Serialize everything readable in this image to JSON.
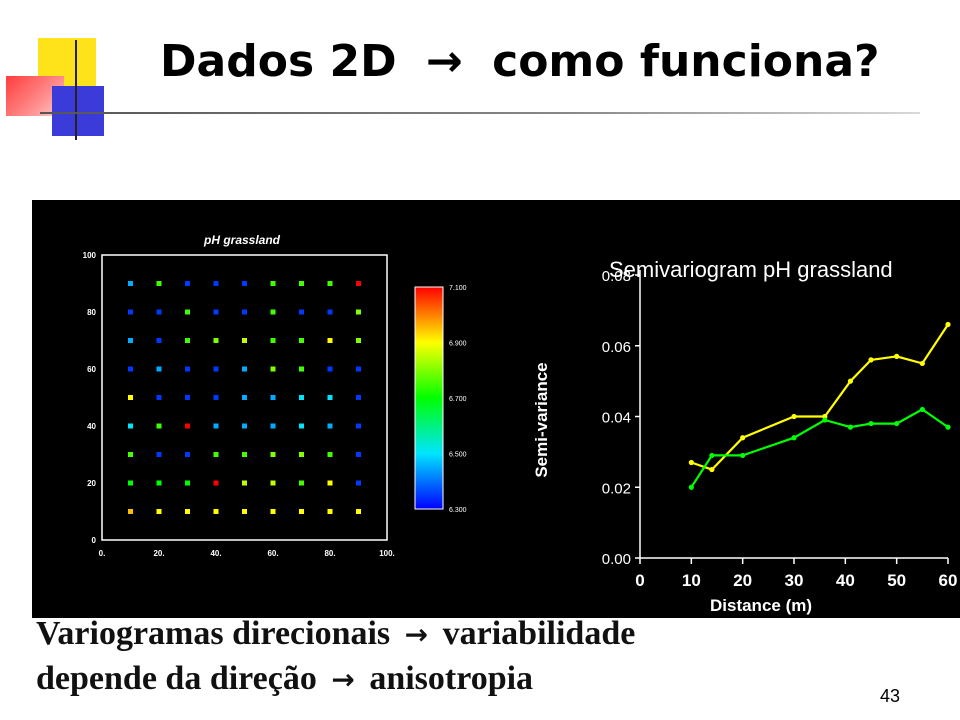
{
  "slide": {
    "title_text": "Dados 2D",
    "title_arrow": "→",
    "title_rest": "como funciona?",
    "caption_line1_a": "Variogramas direcionais",
    "caption_arrow": "→",
    "caption_line1_b": "variabilidade",
    "caption_line2_a": "depende da direção",
    "caption_line2_b": "anisotropia",
    "page_number": "43"
  },
  "chart_data": [
    {
      "type": "scatter",
      "title": "pH grassland",
      "x_ticks": [
        "0.",
        "20.",
        "40.",
        "60.",
        "80.",
        "100."
      ],
      "y_ticks": [
        "0",
        "20",
        "40",
        "60",
        "80",
        "100"
      ],
      "xlim": [
        0,
        100
      ],
      "ylim": [
        0,
        100
      ],
      "colorbar": {
        "ticks": [
          "6.300",
          "6.500",
          "6.700",
          "6.900",
          "7.100"
        ],
        "range": [
          6.3,
          7.1
        ]
      },
      "grid_x": [
        10,
        20,
        30,
        40,
        50,
        60,
        70,
        80,
        90
      ],
      "grid_y": [
        90,
        80,
        70,
        60,
        50,
        40,
        30,
        20,
        10
      ],
      "points_value": [
        [
          6.45,
          6.75,
          6.35,
          6.35,
          6.35,
          6.75,
          6.75,
          6.75,
          7.1
        ],
        [
          6.35,
          6.35,
          6.75,
          6.35,
          6.35,
          6.75,
          6.35,
          6.35,
          6.8
        ],
        [
          6.45,
          6.35,
          6.75,
          6.8,
          6.85,
          6.75,
          6.75,
          6.9,
          6.8
        ],
        [
          6.35,
          6.45,
          6.35,
          6.35,
          6.45,
          6.8,
          6.75,
          6.35,
          6.35
        ],
        [
          6.9,
          6.35,
          6.35,
          6.35,
          6.45,
          6.45,
          6.5,
          6.5,
          6.35
        ],
        [
          6.5,
          6.75,
          7.1,
          6.45,
          6.45,
          6.45,
          6.5,
          6.45,
          6.35
        ],
        [
          6.75,
          6.35,
          6.35,
          6.75,
          6.75,
          6.8,
          6.8,
          6.75,
          6.35
        ],
        [
          6.7,
          6.7,
          6.7,
          7.1,
          6.85,
          6.85,
          6.75,
          6.9,
          6.35
        ],
        [
          6.95,
          6.9,
          6.9,
          6.9,
          6.9,
          6.9,
          6.9,
          6.9,
          6.9
        ]
      ]
    },
    {
      "type": "line",
      "title": "Semivariogram pH grassland",
      "xlabel": "Distance (m)",
      "ylabel": "Semi-variance",
      "xlim": [
        0,
        60
      ],
      "ylim": [
        0,
        0.08
      ],
      "x_ticks": [
        "0",
        "10",
        "20",
        "30",
        "40",
        "50",
        "60"
      ],
      "y_ticks": [
        "0.00",
        "0.02",
        "0.04",
        "0.06",
        "0.08"
      ],
      "series": [
        {
          "color": "#ffff00",
          "x": [
            10,
            14,
            20,
            30,
            36,
            41,
            45,
            50,
            55,
            60
          ],
          "y": [
            0.027,
            0.025,
            0.034,
            0.04,
            0.04,
            0.05,
            0.056,
            0.057,
            0.055,
            0.066
          ]
        },
        {
          "color": "#00ff00",
          "x": [
            10,
            14,
            20,
            30,
            36,
            41,
            45,
            50,
            55,
            60
          ],
          "y": [
            0.02,
            0.029,
            0.029,
            0.034,
            0.039,
            0.037,
            0.038,
            0.038,
            0.042,
            0.037
          ]
        }
      ]
    }
  ]
}
